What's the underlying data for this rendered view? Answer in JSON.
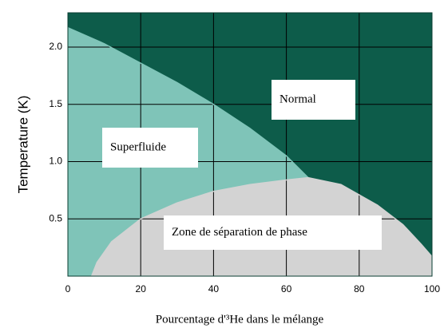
{
  "chart_data": {
    "type": "line",
    "xlabel": "Pourcentage d'³He dans le mélange",
    "ylabel": "Temperature (K)",
    "xlim": [
      0,
      100
    ],
    "xticks": [
      0,
      20,
      40,
      60,
      80,
      100
    ],
    "ylim": [
      0,
      2.3
    ],
    "yticks": [
      0.5,
      {
        "value": 1,
        "label": "1.0"
      },
      1.5,
      {
        "value": 2,
        "label": "2.0"
      }
    ],
    "grid": true,
    "background": "#0d5c4a",
    "series": [
      {
        "name": "Superfluide",
        "color": "#7fc4b8",
        "x": [
          0,
          10,
          20,
          30,
          40,
          50,
          60,
          66
        ],
        "values": [
          2.17,
          2.03,
          1.86,
          1.69,
          1.5,
          1.29,
          1.05,
          0.86
        ]
      },
      {
        "name": "Zone de séparation de phase",
        "color": "#d3d3d3",
        "x": [
          6.5,
          8,
          12,
          20,
          30,
          40,
          50,
          60,
          66,
          75,
          85,
          92,
          97,
          100
        ],
        "values": [
          0,
          0.12,
          0.3,
          0.5,
          0.64,
          0.74,
          0.8,
          0.84,
          0.86,
          0.8,
          0.62,
          0.45,
          0.28,
          0.17
        ]
      }
    ],
    "annotations": [
      "Normal",
      "Superfluide",
      "Zone de séparation de phase"
    ]
  }
}
